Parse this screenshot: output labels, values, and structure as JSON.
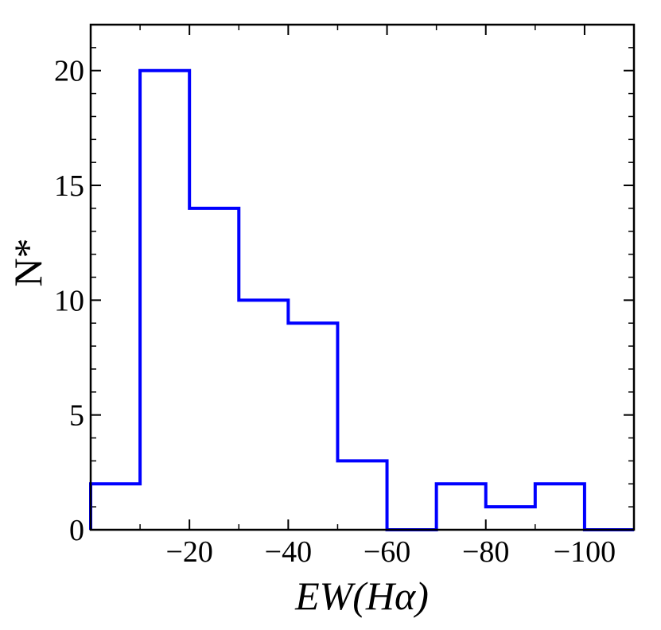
{
  "chart_data": {
    "type": "histogram",
    "title": "",
    "xlabel": "EW(Hα)",
    "ylabel": "N*",
    "xlim": [
      0,
      -110
    ],
    "ylim": [
      0,
      22
    ],
    "bin_edges": [
      0,
      -10,
      -20,
      -30,
      -40,
      -50,
      -60,
      -70,
      -80,
      -90,
      -100,
      -110
    ],
    "counts": [
      2,
      20,
      14,
      10,
      9,
      3,
      0,
      2,
      1,
      2,
      0
    ],
    "line_color": "#0000ff",
    "grid": false,
    "x_ticks": [
      -20,
      -40,
      -60,
      -80,
      -100
    ],
    "x_tick_labels": [
      "−20",
      "−40",
      "−60",
      "−80",
      "−100"
    ],
    "y_ticks": [
      0,
      5,
      10,
      15,
      20
    ],
    "y_tick_labels": [
      "0",
      "5",
      "10",
      "15",
      "20"
    ]
  }
}
